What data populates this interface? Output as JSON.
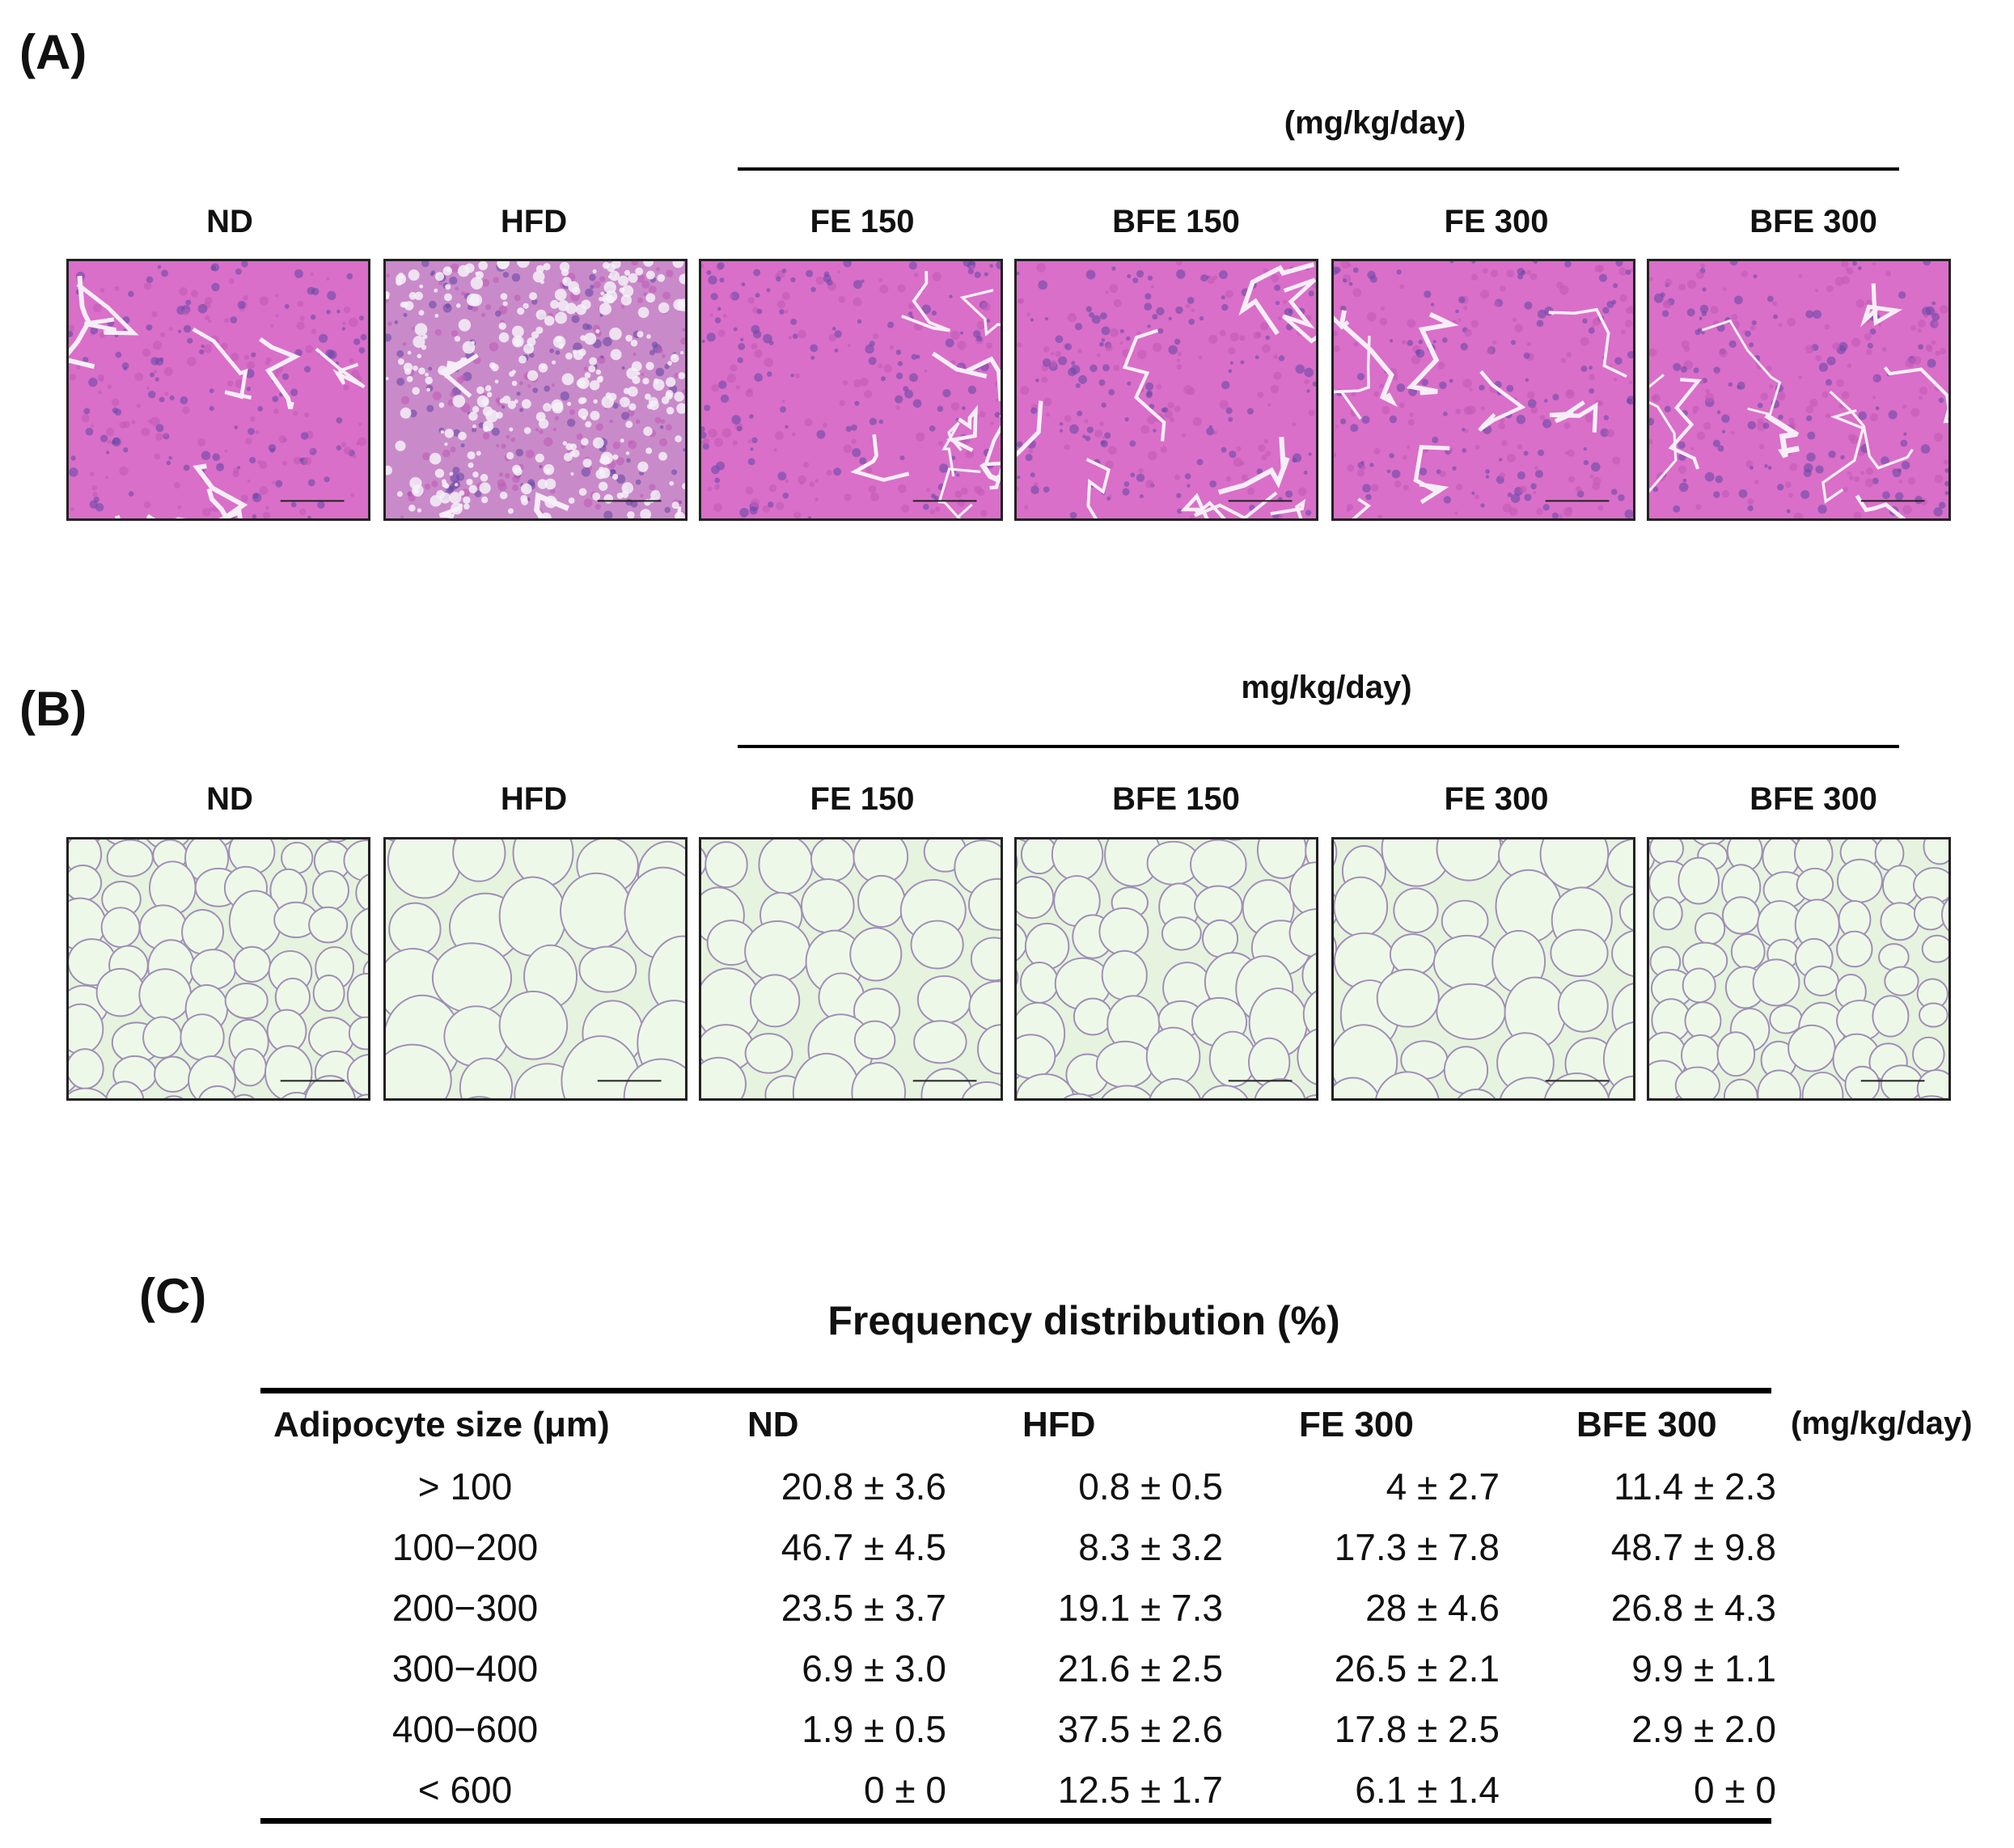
{
  "panel_a": {
    "label": "(A)",
    "unit": "(mg/kg/day)",
    "columns": [
      "ND",
      "HFD",
      "FE 150",
      "BFE 150",
      "FE 300",
      "BFE 300"
    ]
  },
  "panel_b": {
    "label": "(B)",
    "unit": "mg/kg/day)",
    "columns": [
      "ND",
      "HFD",
      "FE 150",
      "BFE 150",
      "FE 300",
      "BFE 300"
    ]
  },
  "panel_c": {
    "label": "(C)",
    "title": "Frequency distribution (%)",
    "unit": "(mg/kg/day)",
    "header": [
      "Adipocyte size (μm)",
      "ND",
      "HFD",
      "FE 300",
      "BFE 300"
    ],
    "rows": [
      {
        "size": "> 100",
        "values": [
          "20.8 ± 3.6",
          "0.8 ± 0.5",
          "4 ± 2.7",
          "11.4 ± 2.3"
        ]
      },
      {
        "size": "100−200",
        "values": [
          "46.7 ± 4.5",
          "8.3 ± 3.2",
          "17.3 ± 7.8",
          "48.7 ± 9.8"
        ]
      },
      {
        "size": "200−300",
        "values": [
          "23.5 ± 3.7",
          "19.1 ± 7.3",
          "28 ± 4.6",
          "26.8 ± 4.3"
        ]
      },
      {
        "size": "300−400",
        "values": [
          "6.9 ± 3.0",
          "21.6 ± 2.5",
          "26.5 ± 2.1",
          "9.9 ± 1.1"
        ]
      },
      {
        "size": "400−600",
        "values": [
          "1.9 ± 0.5",
          "37.5 ± 2.6",
          "17.8 ± 2.5",
          "2.9 ± 2.0"
        ]
      },
      {
        "size": "< 600",
        "values": [
          "0 ± 0",
          "12.5 ± 1.7",
          "6.1 ± 1.4",
          "0 ± 0"
        ]
      }
    ]
  },
  "colors": {
    "liver_bg": "#d96fc8",
    "liver_cell": "#c15cb8",
    "adipose_bg": "#e6f3df",
    "adipose_line": "#9f8fb5"
  }
}
